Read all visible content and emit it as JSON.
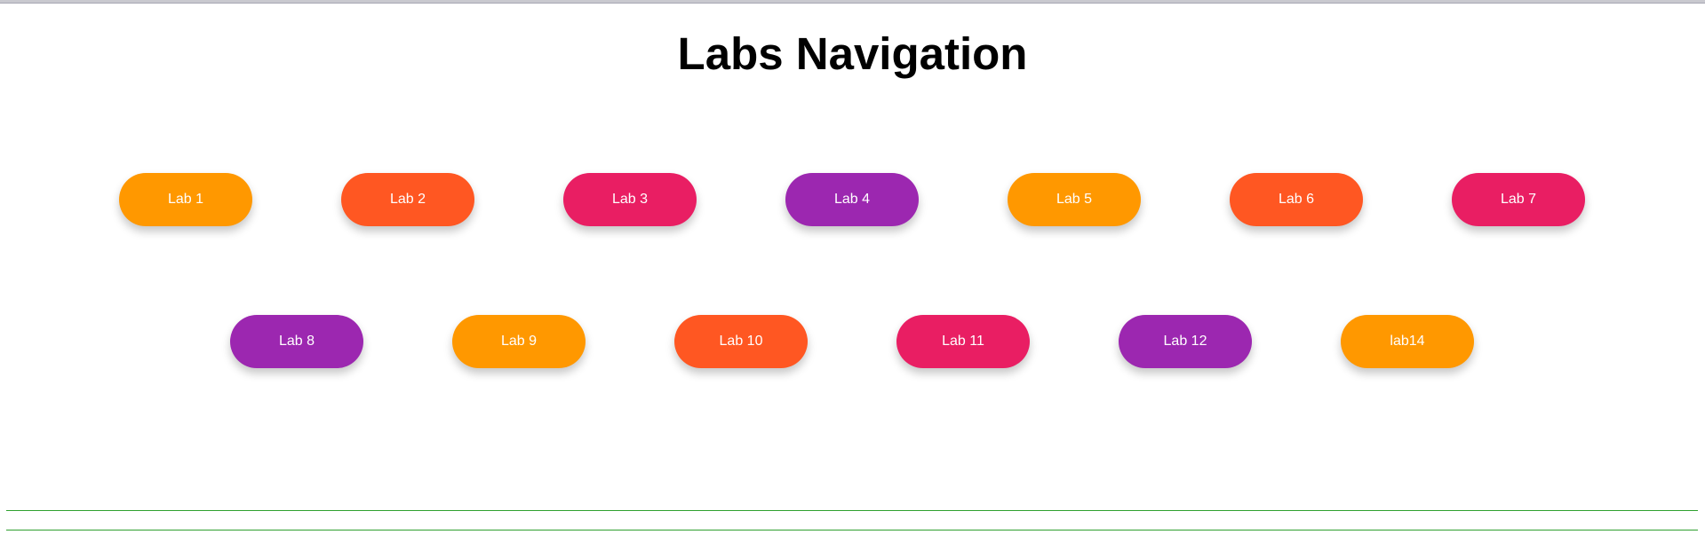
{
  "page": {
    "title": "Labs Navigation"
  },
  "colors": {
    "orange": "#ff9800",
    "deep_orange": "#ff5722",
    "pink": "#e91e63",
    "purple": "#9c27b0",
    "divider": "#2fa02f"
  },
  "nav": {
    "row1": [
      "Lab 1",
      "Lab 2",
      "Lab 3",
      "Lab 4",
      "Lab 5",
      "Lab 6",
      "Lab 7"
    ],
    "row2": [
      "Lab 8",
      "Lab 9",
      "Lab 10",
      "Lab 11",
      "Lab 12",
      "lab14"
    ]
  }
}
